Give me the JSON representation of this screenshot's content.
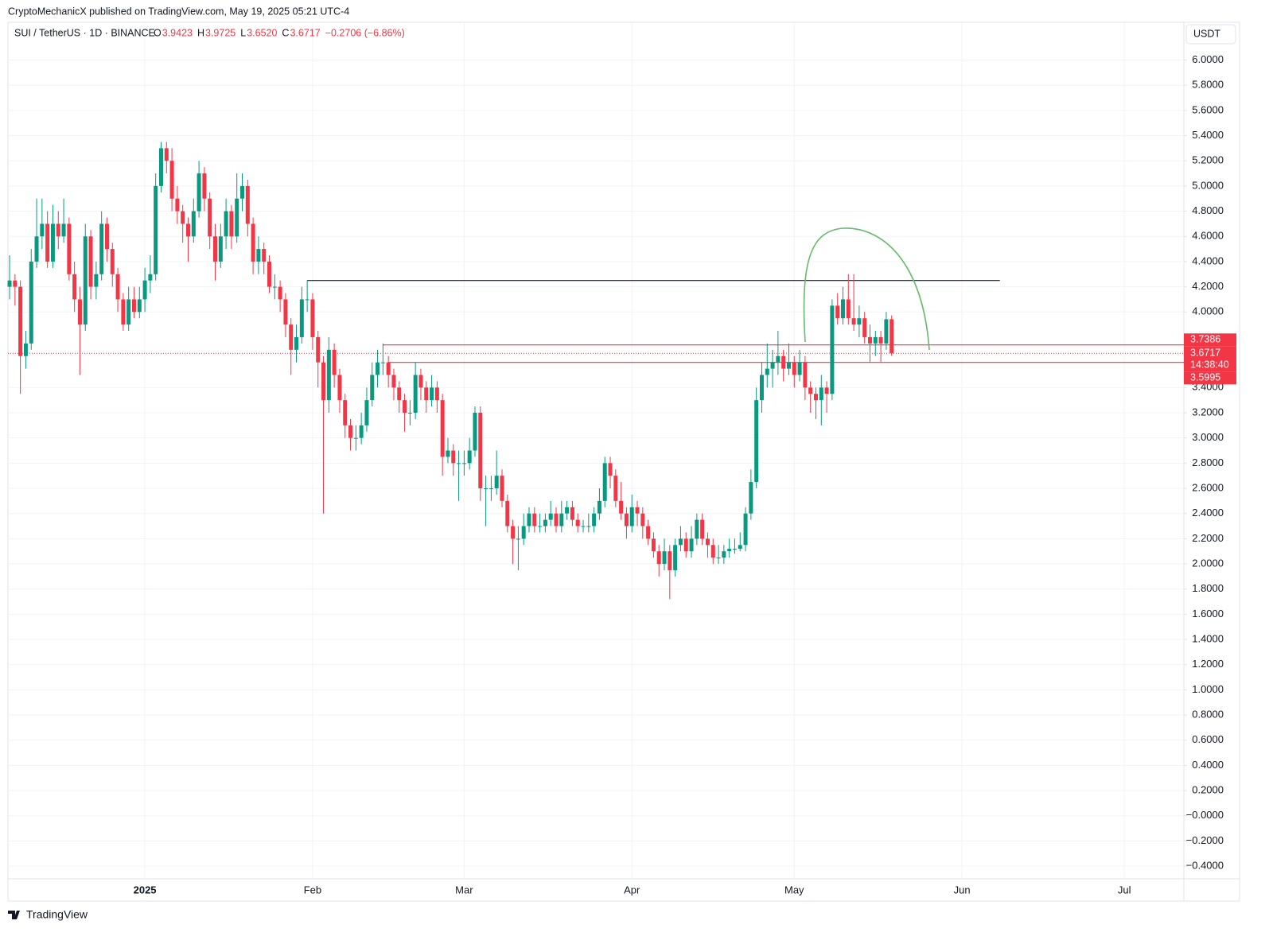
{
  "header": {
    "publisher": "CryptoMechanicX published on TradingView.com, May 19, 2025 05:21 UTC-4",
    "currency_button": "USDT",
    "brand": "TradingView"
  },
  "chart_data": {
    "type": "candlestick",
    "title": "SUI / TetherUS · 1D · BINANCE",
    "legend_values": [
      {
        "key": "O",
        "value": "3.9423"
      },
      {
        "key": "H",
        "value": "3.9725"
      },
      {
        "key": "L",
        "value": "3.6520"
      },
      {
        "key": "C",
        "value": "3.6717"
      }
    ],
    "change": "−0.2706 (−6.86%)",
    "up_color": "#089981",
    "down_color": "#f23645",
    "x": [
      0,
      1,
      2,
      3,
      4,
      5,
      6,
      7,
      8,
      9,
      10,
      11,
      12,
      13,
      14,
      15,
      16,
      17,
      18,
      19,
      20,
      21,
      22,
      23,
      24,
      25,
      26,
      27,
      28,
      29,
      30,
      31,
      32,
      33,
      34,
      35,
      36,
      37,
      38,
      39,
      40,
      41,
      42,
      43,
      44,
      45,
      46,
      47,
      48,
      49,
      50,
      51,
      52,
      53,
      54,
      55,
      56,
      57,
      58,
      59,
      60,
      61,
      62,
      63,
      64,
      65,
      66,
      67,
      68,
      69,
      70,
      71,
      72,
      73,
      74,
      75,
      76,
      77,
      78,
      79,
      80,
      81,
      82,
      83,
      84,
      85,
      86,
      87,
      88,
      89,
      90,
      91,
      92,
      93,
      94,
      95,
      96,
      97,
      98,
      99,
      100,
      101,
      102,
      103,
      104,
      105,
      106,
      107,
      108,
      109,
      110,
      111,
      112,
      113,
      114,
      115,
      116,
      117,
      118,
      119,
      120,
      121,
      122,
      123,
      124,
      125,
      126,
      127,
      128,
      129,
      130,
      131,
      132,
      133,
      134,
      135,
      136,
      137,
      138,
      139,
      140,
      141,
      142,
      143,
      144,
      145,
      146,
      147,
      148,
      149,
      150,
      151,
      152,
      153,
      154,
      155,
      156,
      157,
      158,
      159,
      160,
      161,
      162,
      163
    ],
    "ohlc": [
      [
        4.2,
        4.45,
        4.1,
        4.25
      ],
      [
        4.25,
        4.3,
        4.05,
        4.2
      ],
      [
        4.2,
        4.25,
        3.35,
        3.65
      ],
      [
        3.65,
        3.85,
        3.55,
        3.75
      ],
      [
        3.75,
        4.5,
        3.7,
        4.4
      ],
      [
        4.4,
        4.9,
        4.35,
        4.6
      ],
      [
        4.6,
        4.9,
        4.5,
        4.7
      ],
      [
        4.7,
        4.8,
        4.35,
        4.4
      ],
      [
        4.4,
        4.85,
        4.35,
        4.7
      ],
      [
        4.7,
        4.8,
        4.5,
        4.6
      ],
      [
        4.6,
        4.9,
        4.55,
        4.7
      ],
      [
        4.7,
        4.75,
        4.25,
        4.3
      ],
      [
        4.3,
        4.4,
        4.0,
        4.1
      ],
      [
        4.1,
        4.2,
        3.5,
        3.9
      ],
      [
        3.9,
        4.7,
        3.85,
        4.6
      ],
      [
        4.6,
        4.65,
        4.1,
        4.2
      ],
      [
        4.2,
        4.4,
        4.1,
        4.3
      ],
      [
        4.3,
        4.8,
        4.25,
        4.7
      ],
      [
        4.7,
        4.75,
        4.4,
        4.5
      ],
      [
        4.5,
        4.55,
        4.2,
        4.3
      ],
      [
        4.3,
        4.35,
        4.0,
        4.1
      ],
      [
        4.1,
        4.15,
        3.85,
        3.9
      ],
      [
        3.9,
        4.2,
        3.85,
        4.1
      ],
      [
        4.1,
        4.2,
        3.95,
        4.0
      ],
      [
        4.0,
        4.2,
        3.95,
        4.1
      ],
      [
        4.1,
        4.35,
        4.0,
        4.25
      ],
      [
        4.25,
        4.45,
        4.15,
        4.3
      ],
      [
        4.3,
        5.1,
        4.25,
        5.0
      ],
      [
        5.0,
        5.35,
        4.95,
        5.3
      ],
      [
        5.3,
        5.35,
        5.1,
        5.2
      ],
      [
        5.2,
        5.3,
        4.8,
        4.9
      ],
      [
        4.9,
        5.0,
        4.7,
        4.8
      ],
      [
        4.8,
        4.85,
        4.55,
        4.7
      ],
      [
        4.7,
        4.75,
        4.4,
        4.6
      ],
      [
        4.6,
        4.9,
        4.55,
        4.8
      ],
      [
        4.8,
        5.2,
        4.75,
        5.1
      ],
      [
        5.1,
        5.15,
        4.8,
        4.9
      ],
      [
        4.9,
        4.95,
        4.5,
        4.6
      ],
      [
        4.6,
        4.7,
        4.25,
        4.4
      ],
      [
        4.4,
        4.7,
        4.35,
        4.6
      ],
      [
        4.6,
        4.9,
        4.5,
        4.8
      ],
      [
        4.8,
        4.85,
        4.5,
        4.6
      ],
      [
        4.6,
        5.1,
        4.55,
        4.9
      ],
      [
        4.9,
        5.1,
        4.8,
        5.0
      ],
      [
        5.0,
        5.05,
        4.6,
        4.7
      ],
      [
        4.7,
        4.75,
        4.3,
        4.4
      ],
      [
        4.4,
        4.6,
        4.3,
        4.5
      ],
      [
        4.5,
        4.55,
        4.3,
        4.4
      ],
      [
        4.4,
        4.45,
        4.15,
        4.2
      ],
      [
        4.2,
        4.3,
        4.1,
        4.2
      ],
      [
        4.2,
        4.25,
        4.0,
        4.1
      ],
      [
        4.1,
        4.15,
        3.8,
        3.9
      ],
      [
        3.9,
        3.95,
        3.5,
        3.7
      ],
      [
        3.7,
        3.9,
        3.6,
        3.8
      ],
      [
        3.8,
        4.2,
        3.75,
        4.1
      ],
      [
        4.1,
        4.25,
        4.0,
        4.1
      ],
      [
        4.1,
        4.15,
        3.7,
        3.8
      ],
      [
        3.8,
        3.85,
        3.4,
        3.6
      ],
      [
        3.6,
        3.65,
        2.4,
        3.3
      ],
      [
        3.3,
        3.8,
        3.2,
        3.7
      ],
      [
        3.7,
        3.75,
        3.4,
        3.5
      ],
      [
        3.5,
        3.55,
        3.2,
        3.3
      ],
      [
        3.3,
        3.35,
        3.0,
        3.1
      ],
      [
        3.1,
        3.15,
        2.9,
        3.0
      ],
      [
        3.0,
        3.1,
        2.9,
        3.0
      ],
      [
        3.0,
        3.2,
        2.95,
        3.1
      ],
      [
        3.1,
        3.4,
        3.05,
        3.3
      ],
      [
        3.3,
        3.6,
        3.25,
        3.5
      ],
      [
        3.5,
        3.7,
        3.4,
        3.6
      ],
      [
        3.6,
        3.75,
        3.5,
        3.6
      ],
      [
        3.6,
        3.65,
        3.4,
        3.5
      ],
      [
        3.5,
        3.55,
        3.3,
        3.4
      ],
      [
        3.4,
        3.45,
        3.2,
        3.3
      ],
      [
        3.3,
        3.35,
        3.05,
        3.2
      ],
      [
        3.2,
        3.3,
        3.1,
        3.2
      ],
      [
        3.2,
        3.6,
        3.15,
        3.5
      ],
      [
        3.5,
        3.55,
        3.3,
        3.4
      ],
      [
        3.4,
        3.45,
        3.2,
        3.3
      ],
      [
        3.3,
        3.5,
        3.25,
        3.4
      ],
      [
        3.4,
        3.45,
        3.2,
        3.3
      ],
      [
        3.3,
        3.35,
        2.7,
        2.85
      ],
      [
        2.85,
        3.0,
        2.8,
        2.9
      ],
      [
        2.9,
        2.95,
        2.7,
        2.8
      ],
      [
        2.8,
        2.9,
        2.5,
        2.8
      ],
      [
        2.8,
        2.9,
        2.7,
        2.8
      ],
      [
        2.8,
        3.0,
        2.75,
        2.9
      ],
      [
        2.9,
        3.25,
        2.85,
        3.2
      ],
      [
        3.2,
        3.25,
        2.5,
        2.6
      ],
      [
        2.6,
        2.7,
        2.3,
        2.6
      ],
      [
        2.6,
        2.7,
        2.5,
        2.6
      ],
      [
        2.6,
        2.9,
        2.55,
        2.7
      ],
      [
        2.7,
        2.75,
        2.45,
        2.5
      ],
      [
        2.5,
        2.55,
        2.25,
        2.3
      ],
      [
        2.3,
        2.35,
        2.0,
        2.2
      ],
      [
        2.2,
        2.3,
        1.95,
        2.2
      ],
      [
        2.2,
        2.4,
        2.15,
        2.3
      ],
      [
        2.3,
        2.45,
        2.25,
        2.4
      ],
      [
        2.4,
        2.45,
        2.25,
        2.3
      ],
      [
        2.3,
        2.4,
        2.25,
        2.3
      ],
      [
        2.3,
        2.4,
        2.25,
        2.35
      ],
      [
        2.35,
        2.5,
        2.3,
        2.4
      ],
      [
        2.4,
        2.45,
        2.25,
        2.3
      ],
      [
        2.3,
        2.5,
        2.25,
        2.4
      ],
      [
        2.4,
        2.5,
        2.35,
        2.45
      ],
      [
        2.45,
        2.5,
        2.3,
        2.35
      ],
      [
        2.35,
        2.4,
        2.25,
        2.3
      ],
      [
        2.3,
        2.35,
        2.25,
        2.3
      ],
      [
        2.3,
        2.4,
        2.25,
        2.3
      ],
      [
        2.3,
        2.45,
        2.25,
        2.4
      ],
      [
        2.4,
        2.6,
        2.35,
        2.5
      ],
      [
        2.5,
        2.85,
        2.45,
        2.8
      ],
      [
        2.8,
        2.85,
        2.6,
        2.7
      ],
      [
        2.7,
        2.75,
        2.45,
        2.5
      ],
      [
        2.5,
        2.65,
        2.35,
        2.4
      ],
      [
        2.4,
        2.45,
        2.2,
        2.3
      ],
      [
        2.3,
        2.55,
        2.25,
        2.45
      ],
      [
        2.45,
        2.5,
        2.3,
        2.4
      ],
      [
        2.4,
        2.45,
        2.2,
        2.3
      ],
      [
        2.3,
        2.35,
        2.15,
        2.2
      ],
      [
        2.2,
        2.25,
        2.05,
        2.1
      ],
      [
        2.1,
        2.15,
        1.9,
        2.0
      ],
      [
        2.0,
        2.2,
        1.95,
        2.1
      ],
      [
        2.1,
        2.15,
        1.72,
        1.95
      ],
      [
        1.95,
        2.2,
        1.9,
        2.15
      ],
      [
        2.15,
        2.3,
        2.1,
        2.2
      ],
      [
        2.2,
        2.25,
        2.05,
        2.1
      ],
      [
        2.1,
        2.3,
        2.05,
        2.2
      ],
      [
        2.2,
        2.4,
        2.15,
        2.35
      ],
      [
        2.35,
        2.4,
        2.15,
        2.2
      ],
      [
        2.2,
        2.25,
        2.05,
        2.15
      ],
      [
        2.15,
        2.2,
        2.0,
        2.05
      ],
      [
        2.05,
        2.15,
        2.0,
        2.05
      ],
      [
        2.05,
        2.15,
        2.0,
        2.1
      ],
      [
        2.1,
        2.2,
        2.05,
        2.12
      ],
      [
        2.12,
        2.2,
        2.08,
        2.12
      ],
      [
        2.12,
        2.25,
        2.1,
        2.15
      ],
      [
        2.15,
        2.45,
        2.1,
        2.4
      ],
      [
        2.4,
        2.75,
        2.35,
        2.65
      ],
      [
        2.65,
        3.4,
        2.6,
        3.3
      ],
      [
        3.3,
        3.6,
        3.2,
        3.5
      ],
      [
        3.5,
        3.75,
        3.4,
        3.55
      ],
      [
        3.55,
        3.7,
        3.4,
        3.6
      ],
      [
        3.6,
        3.85,
        3.5,
        3.65
      ],
      [
        3.65,
        3.7,
        3.45,
        3.55
      ],
      [
        3.55,
        3.75,
        3.5,
        3.6
      ],
      [
        3.6,
        3.65,
        3.4,
        3.5
      ],
      [
        3.5,
        3.7,
        3.45,
        3.6
      ],
      [
        3.6,
        3.65,
        3.3,
        3.4
      ],
      [
        3.4,
        3.45,
        3.2,
        3.35
      ],
      [
        3.35,
        3.4,
        3.15,
        3.3
      ],
      [
        3.3,
        3.5,
        3.1,
        3.4
      ],
      [
        3.4,
        3.45,
        3.2,
        3.35
      ],
      [
        3.35,
        4.1,
        3.3,
        4.05
      ],
      [
        4.05,
        4.15,
        3.9,
        3.95
      ],
      [
        3.95,
        4.2,
        3.9,
        4.1
      ],
      [
        4.1,
        4.3,
        3.9,
        3.95
      ],
      [
        3.95,
        4.3,
        3.85,
        3.9
      ],
      [
        3.9,
        4.05,
        3.8,
        3.95
      ],
      [
        3.95,
        4.0,
        3.75,
        3.8
      ],
      [
        3.8,
        3.9,
        3.6,
        3.75
      ],
      [
        3.75,
        3.85,
        3.65,
        3.8
      ],
      [
        3.8,
        3.85,
        3.6,
        3.75
      ],
      [
        3.75,
        4.0,
        3.7,
        3.9423
      ],
      [
        3.9423,
        3.9725,
        3.652,
        3.6717
      ]
    ],
    "xlim": [
      -0.3,
      217
    ],
    "xticks": [
      {
        "value": 25,
        "label": "2025"
      },
      {
        "value": 56,
        "label": "Feb"
      },
      {
        "value": 84,
        "label": "Mar"
      },
      {
        "value": 115,
        "label": "Apr"
      },
      {
        "value": 145,
        "label": "May"
      },
      {
        "value": 176,
        "label": "Jun"
      },
      {
        "value": 206,
        "label": "Jul"
      }
    ],
    "ylim": [
      -0.5,
      6.3
    ],
    "yticks": [
      {
        "value": 6.0,
        "label": "6.0000"
      },
      {
        "value": 5.8,
        "label": "5.8000"
      },
      {
        "value": 5.6,
        "label": "5.6000"
      },
      {
        "value": 5.4,
        "label": "5.4000"
      },
      {
        "value": 5.2,
        "label": "5.2000"
      },
      {
        "value": 5.0,
        "label": "5.0000"
      },
      {
        "value": 4.8,
        "label": "4.8000"
      },
      {
        "value": 4.6,
        "label": "4.6000"
      },
      {
        "value": 4.4,
        "label": "4.4000"
      },
      {
        "value": 4.2,
        "label": "4.2000"
      },
      {
        "value": 4.0,
        "label": "4.0000"
      },
      {
        "value": 3.4,
        "label": "3.4000"
      },
      {
        "value": 3.2,
        "label": "3.2000"
      },
      {
        "value": 3.0,
        "label": "3.0000"
      },
      {
        "value": 2.8,
        "label": "2.8000"
      },
      {
        "value": 2.6,
        "label": "2.6000"
      },
      {
        "value": 2.4,
        "label": "2.4000"
      },
      {
        "value": 2.2,
        "label": "2.2000"
      },
      {
        "value": 2.0,
        "label": "2.0000"
      },
      {
        "value": 1.8,
        "label": "1.8000"
      },
      {
        "value": 1.6,
        "label": "1.6000"
      },
      {
        "value": 1.4,
        "label": "1.4000"
      },
      {
        "value": 1.2,
        "label": "1.2000"
      },
      {
        "value": 1.0,
        "label": "1.0000"
      },
      {
        "value": 0.8,
        "label": "0.8000"
      },
      {
        "value": 0.6,
        "label": "0.6000"
      },
      {
        "value": 0.4,
        "label": "0.4000"
      },
      {
        "value": 0.2,
        "label": "0.2000"
      },
      {
        "value": 0,
        "label": "−0.0000"
      },
      {
        "value": -0.2,
        "label": "−0.2000"
      },
      {
        "value": -0.4,
        "label": "−0.4000"
      }
    ],
    "levels": [
      {
        "value": 4.25,
        "color": "#131722",
        "x": [
          55,
          183
        ],
        "show_price": false
      },
      {
        "value": 3.7386,
        "color": "#f23645",
        "x": [
          69,
          217
        ],
        "show_price": true
      },
      {
        "value": 3.5995,
        "color": "#f23645",
        "x": [
          70,
          217
        ],
        "show_price": true
      }
    ],
    "last_price": {
      "value": 3.6717,
      "countdown": "14:38:40",
      "color": "#f23645"
    }
  }
}
